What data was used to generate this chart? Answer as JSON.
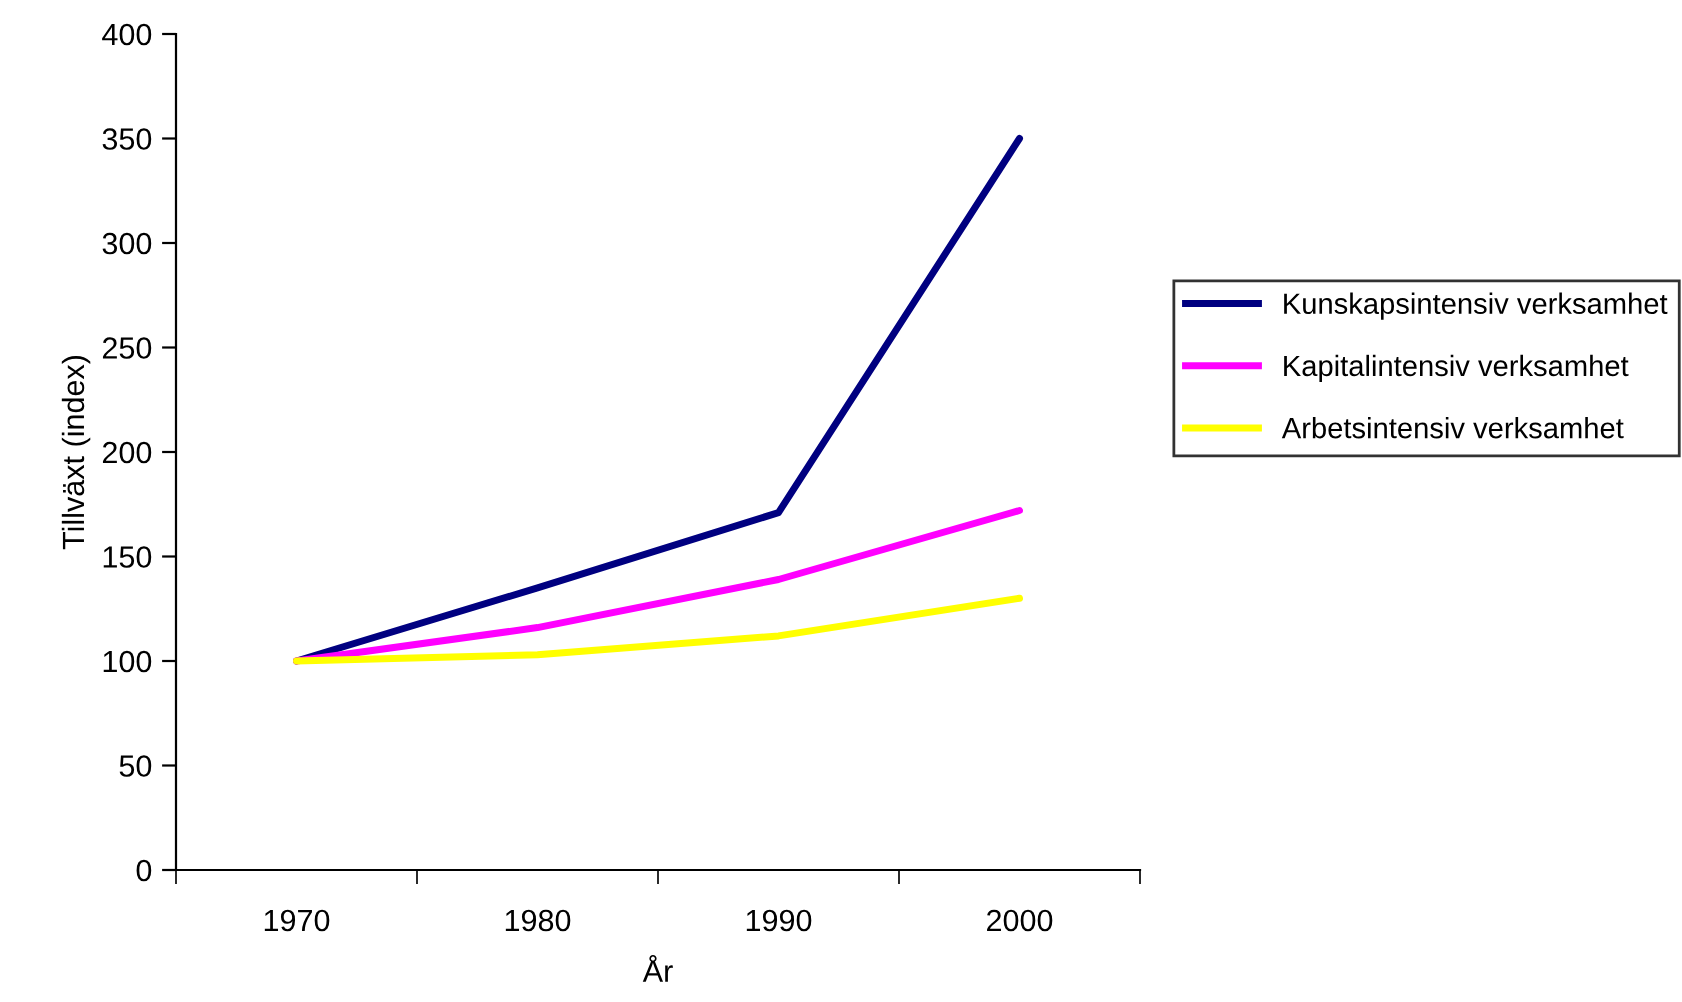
{
  "chart_data": {
    "type": "line",
    "xlabel": "År",
    "ylabel": "Tillväxt (index)",
    "categories": [
      "1970",
      "1980",
      "1990",
      "2000"
    ],
    "series": [
      {
        "name": "Kunskapsintensiv verksamhet",
        "color": "#000080",
        "values": [
          100,
          135,
          171,
          350
        ]
      },
      {
        "name": "Kapitalintensiv verksamhet",
        "color": "#ff00ff",
        "values": [
          100,
          116,
          139,
          172
        ]
      },
      {
        "name": "Arbetsintensiv verksamhet",
        "color": "#ffff00",
        "values": [
          100,
          103,
          112,
          130
        ]
      }
    ],
    "ylim": [
      0,
      400
    ],
    "yticks": [
      0,
      50,
      100,
      150,
      200,
      250,
      300,
      350,
      400
    ],
    "grid": false,
    "legend": "right",
    "marker": "none",
    "line_style": "solid"
  }
}
